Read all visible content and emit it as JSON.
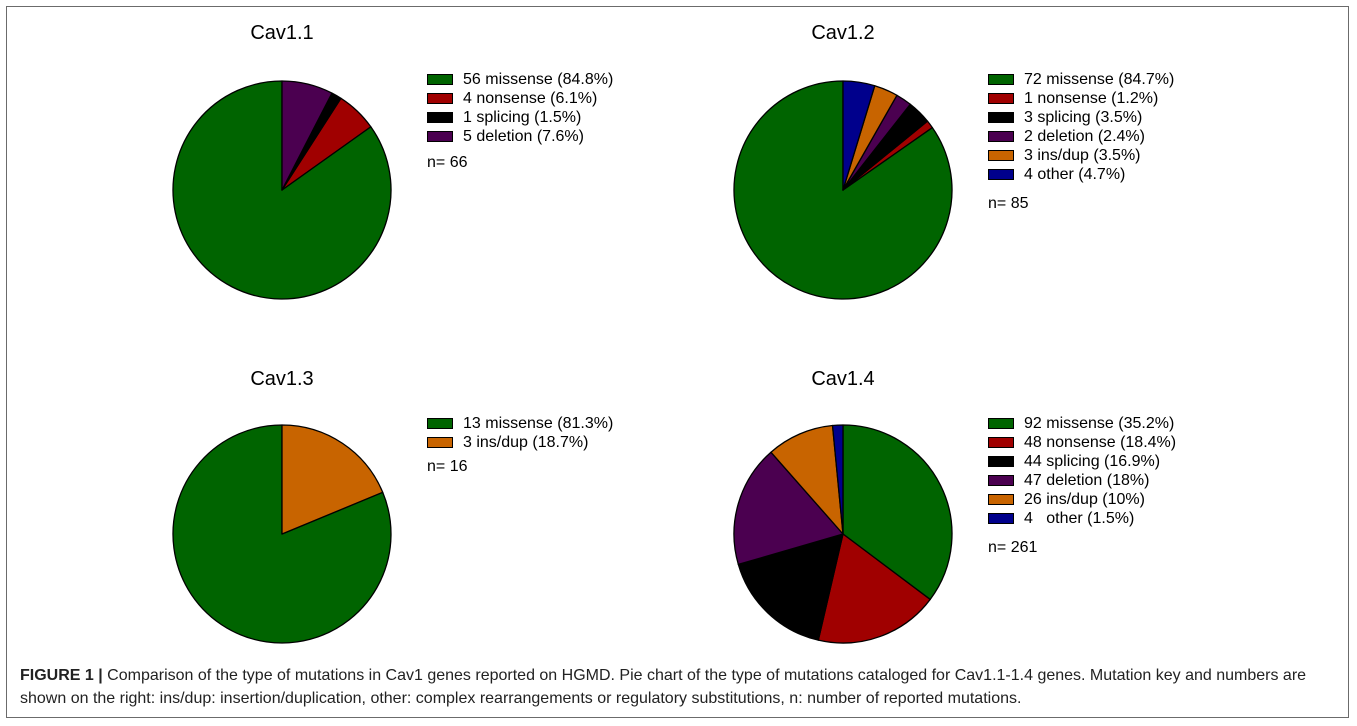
{
  "chart_data": [
    {
      "type": "pie",
      "title": "Cav1.1",
      "slices": [
        {
          "count": 56,
          "label": "56 missense (84.8%)",
          "color": "#006400"
        },
        {
          "count": 4,
          "label": "4 nonsense (6.1%)",
          "color": "#a00000"
        },
        {
          "count": 1,
          "label": "1 splicing (1.5%)",
          "color": "#000000"
        },
        {
          "count": 5,
          "label": "5 deletion (7.6%)",
          "color": "#4b0050"
        }
      ],
      "n_label": "n= 66"
    },
    {
      "type": "pie",
      "title": "Cav1.2",
      "slices": [
        {
          "count": 72,
          "label": "72 missense (84.7%)",
          "color": "#006400"
        },
        {
          "count": 1,
          "label": "1 nonsense (1.2%)",
          "color": "#a00000"
        },
        {
          "count": 3,
          "label": "3 splicing (3.5%)",
          "color": "#000000"
        },
        {
          "count": 2,
          "label": "2 deletion (2.4%)",
          "color": "#4b0050"
        },
        {
          "count": 3,
          "label": "3 ins/dup (3.5%)",
          "color": "#c86400"
        },
        {
          "count": 4,
          "label": "4 other (4.7%)",
          "color": "#00008c"
        }
      ],
      "n_label": "n= 85"
    },
    {
      "type": "pie",
      "title": "Cav1.3",
      "slices": [
        {
          "count": 13,
          "label": "13 missense (81.3%)",
          "color": "#006400"
        },
        {
          "count": 3,
          "label": "3 ins/dup (18.7%)",
          "color": "#c86400"
        }
      ],
      "n_label": "n= 16"
    },
    {
      "type": "pie",
      "title": "Cav1.4",
      "slices": [
        {
          "count": 92,
          "label": "92 missense (35.2%)",
          "color": "#006400"
        },
        {
          "count": 48,
          "label": "48 nonsense (18.4%)",
          "color": "#a00000"
        },
        {
          "count": 44,
          "label": "44 splicing (16.9%)",
          "color": "#000000"
        },
        {
          "count": 47,
          "label": "47 deletion (18%)",
          "color": "#4b0050"
        },
        {
          "count": 26,
          "label": "26 ins/dup (10%)",
          "color": "#c86400"
        },
        {
          "count": 4,
          "label": "4   other (1.5%)",
          "color": "#00008c"
        }
      ],
      "n_label": "n= 261"
    }
  ],
  "caption": {
    "figure_label": "FIGURE 1 |",
    "text": " Comparison of the type of mutations in Cav1 genes reported on HGMD. Pie chart of the type of mutations cataloged for Cav1.1-1.4 genes. Mutation key and numbers are shown on the right: ins/dup: insertion/duplication, other: complex rearrangements or regulatory substitutions, n: number of reported mutations."
  }
}
